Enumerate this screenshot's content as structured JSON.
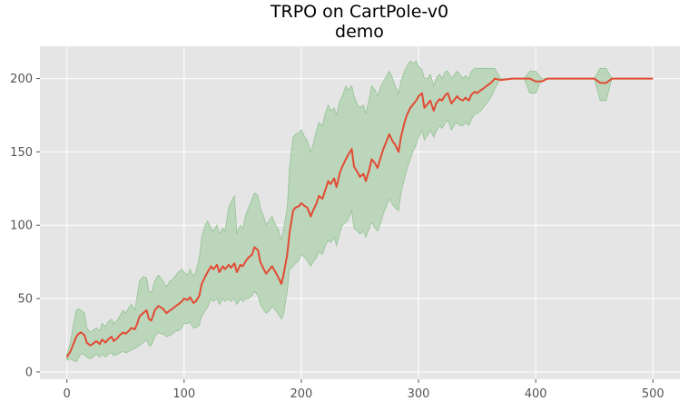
{
  "chart_data": {
    "type": "line",
    "title": "TRPO on CartPole-v0",
    "subtitle": "demo",
    "xlabel": "",
    "ylabel": "",
    "xlim": [
      -23,
      523
    ],
    "ylim": [
      -5,
      222
    ],
    "xticks": [
      0,
      100,
      200,
      300,
      400,
      500
    ],
    "yticks": [
      0,
      50,
      100,
      150,
      200
    ],
    "grid": true,
    "legend": "none",
    "colors": {
      "plot_background": "#e5e5e5",
      "grid": "#ffffff",
      "line": "#e24a33",
      "band": "#b5d3b5",
      "band_edge": "#93c393"
    },
    "series": [
      {
        "x": [
          0,
          3,
          5,
          8,
          10,
          12,
          15,
          17,
          20,
          22,
          25,
          28,
          30,
          33,
          35,
          38,
          40,
          43,
          45,
          48,
          50,
          53,
          55,
          58,
          60,
          62,
          65,
          68,
          70,
          72,
          75,
          78,
          80,
          82,
          85,
          88,
          90,
          93,
          95,
          98,
          100,
          103,
          105,
          108,
          110,
          113,
          115,
          118,
          120,
          123,
          125,
          128,
          130,
          133,
          135,
          138,
          140,
          143,
          145,
          148,
          150,
          153,
          155,
          158,
          160,
          163,
          165,
          168,
          170,
          173,
          175,
          178,
          180,
          183,
          185,
          188,
          190,
          193,
          195,
          198,
          200,
          203,
          205,
          208,
          210,
          213,
          215,
          218,
          220,
          223,
          225,
          228,
          230,
          233,
          235,
          238,
          240,
          243,
          245,
          248,
          250,
          253,
          255,
          258,
          260,
          263,
          265,
          268,
          270,
          273,
          275,
          278,
          280,
          283,
          285,
          288,
          290,
          293,
          295,
          298,
          300,
          303,
          305,
          308,
          310,
          313,
          315,
          318,
          320,
          323,
          325,
          328,
          330,
          333,
          335,
          338,
          340,
          343,
          345,
          348,
          350,
          353,
          355,
          358,
          360,
          363,
          365,
          370,
          380,
          390,
          395,
          400,
          405,
          410,
          420,
          430,
          440,
          450,
          455,
          460,
          465,
          470,
          480,
          490,
          500
        ],
        "y": [
          10,
          14,
          18,
          24,
          26,
          27,
          25,
          20,
          18,
          19,
          21,
          19,
          22,
          20,
          22,
          24,
          21,
          23,
          25,
          27,
          26,
          28,
          30,
          29,
          33,
          38,
          40,
          42,
          36,
          35,
          42,
          45,
          44,
          43,
          40,
          42,
          43,
          45,
          46,
          48,
          50,
          49,
          51,
          47,
          48,
          52,
          60,
          65,
          68,
          72,
          70,
          73,
          68,
          72,
          70,
          73,
          71,
          74,
          68,
          73,
          72,
          76,
          78,
          80,
          85,
          83,
          75,
          70,
          67,
          70,
          72,
          68,
          65,
          60,
          67,
          80,
          95,
          110,
          112,
          113,
          115,
          113,
          112,
          106,
          110,
          115,
          120,
          118,
          123,
          130,
          128,
          132,
          126,
          136,
          140,
          145,
          148,
          152,
          140,
          136,
          133,
          135,
          130,
          138,
          145,
          142,
          139,
          147,
          152,
          158,
          162,
          157,
          155,
          150,
          160,
          170,
          175,
          180,
          182,
          185,
          188,
          190,
          180,
          183,
          185,
          178,
          183,
          186,
          185,
          189,
          190,
          183,
          185,
          188,
          186,
          185,
          187,
          185,
          189,
          191,
          190,
          192,
          193,
          195,
          196,
          198,
          200,
          199,
          200,
          200,
          200,
          198,
          198,
          200,
          200,
          200,
          200,
          200,
          197,
          197,
          200,
          200,
          200,
          200,
          200
        ]
      }
    ],
    "band": {
      "upper": [
        12,
        20,
        30,
        42,
        43,
        42,
        40,
        30,
        27,
        28,
        30,
        28,
        33,
        31,
        34,
        36,
        33,
        35,
        38,
        42,
        40,
        44,
        46,
        42,
        52,
        62,
        65,
        64,
        55,
        54,
        62,
        66,
        64,
        62,
        58,
        62,
        63,
        66,
        68,
        70,
        68,
        66,
        70,
        65,
        68,
        78,
        92,
        100,
        103,
        98,
        96,
        100,
        94,
        98,
        96,
        112,
        116,
        120,
        94,
        100,
        98,
        108,
        112,
        118,
        122,
        120,
        112,
        106,
        100,
        104,
        106,
        100,
        98,
        90,
        98,
        112,
        140,
        160,
        162,
        163,
        165,
        160,
        158,
        150,
        155,
        165,
        170,
        168,
        175,
        182,
        178,
        180,
        175,
        185,
        188,
        195,
        192,
        195,
        188,
        182,
        180,
        182,
        176,
        186,
        195,
        192,
        188,
        195,
        198,
        202,
        205,
        200,
        195,
        190,
        198,
        205,
        208,
        212,
        210,
        212,
        208,
        206,
        200,
        200,
        203,
        195,
        200,
        203,
        200,
        205,
        205,
        200,
        202,
        205,
        203,
        200,
        202,
        200,
        205,
        207,
        207,
        207,
        207,
        207,
        207,
        207,
        207,
        200,
        200,
        200,
        205,
        205,
        200,
        200,
        200,
        200,
        200,
        200,
        207,
        207,
        200,
        200,
        200,
        200,
        200
      ],
      "lower": [
        8,
        9,
        8,
        7,
        10,
        12,
        12,
        10,
        9,
        10,
        12,
        10,
        12,
        10,
        12,
        13,
        11,
        12,
        13,
        14,
        13,
        14,
        15,
        16,
        17,
        18,
        20,
        22,
        18,
        18,
        24,
        27,
        26,
        26,
        24,
        25,
        26,
        28,
        28,
        30,
        33,
        33,
        34,
        30,
        30,
        32,
        38,
        42,
        44,
        50,
        48,
        50,
        46,
        50,
        48,
        50,
        48,
        50,
        46,
        50,
        48,
        50,
        50,
        52,
        55,
        52,
        46,
        42,
        40,
        42,
        45,
        42,
        40,
        36,
        40,
        55,
        70,
        72,
        74,
        76,
        80,
        78,
        76,
        72,
        75,
        78,
        82,
        80,
        85,
        90,
        88,
        92,
        86,
        95,
        100,
        102,
        104,
        110,
        98,
        96,
        94,
        96,
        92,
        98,
        102,
        98,
        96,
        102,
        108,
        114,
        118,
        114,
        112,
        110,
        122,
        132,
        138,
        145,
        150,
        155,
        160,
        165,
        158,
        162,
        165,
        160,
        164,
        168,
        166,
        170,
        172,
        165,
        168,
        170,
        168,
        168,
        170,
        168,
        172,
        176,
        176,
        178,
        180,
        183,
        185,
        189,
        193,
        200,
        200,
        200,
        190,
        190,
        200,
        200,
        200,
        200,
        200,
        200,
        185,
        185,
        200,
        200,
        200,
        200,
        200
      ]
    }
  }
}
